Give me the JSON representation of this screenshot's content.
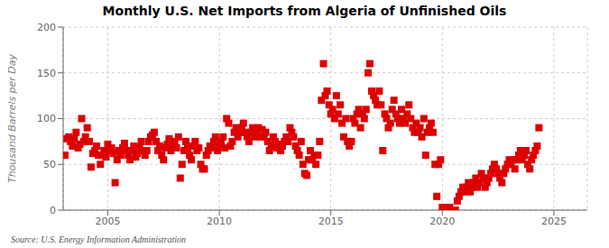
{
  "chart_data": {
    "type": "scatter",
    "title": "Monthly U.S. Net Imports from Algeria of Unfinished Oils",
    "ylabel": "Thousand Barrels per Day",
    "source": "Source: U.S. Energy Information Administration",
    "color": "#dd0000",
    "marker": "square",
    "grid": true,
    "xlim": [
      2003.0,
      2026.5
    ],
    "xticks": [
      2005,
      2010,
      2015,
      2020,
      2025
    ],
    "ylim": [
      0,
      200
    ],
    "yticks": [
      0,
      50,
      100,
      150,
      200
    ],
    "x": [
      2003.08,
      2003.17,
      2003.25,
      2003.33,
      2003.42,
      2003.5,
      2003.58,
      2003.67,
      2003.75,
      2003.83,
      2003.92,
      2004.0,
      2004.08,
      2004.17,
      2004.25,
      2004.33,
      2004.42,
      2004.5,
      2004.58,
      2004.67,
      2004.75,
      2004.83,
      2004.92,
      2005.0,
      2005.08,
      2005.17,
      2005.25,
      2005.33,
      2005.42,
      2005.5,
      2005.58,
      2005.67,
      2005.75,
      2005.83,
      2005.92,
      2006.0,
      2006.08,
      2006.17,
      2006.25,
      2006.33,
      2006.42,
      2006.5,
      2006.58,
      2006.67,
      2006.75,
      2006.83,
      2006.92,
      2007.0,
      2007.08,
      2007.17,
      2007.25,
      2007.33,
      2007.42,
      2007.5,
      2007.58,
      2007.67,
      2007.75,
      2007.83,
      2007.92,
      2008.0,
      2008.08,
      2008.17,
      2008.25,
      2008.33,
      2008.42,
      2008.5,
      2008.58,
      2008.67,
      2008.75,
      2008.83,
      2008.92,
      2009.0,
      2009.08,
      2009.17,
      2009.25,
      2009.33,
      2009.42,
      2009.5,
      2009.58,
      2009.67,
      2009.75,
      2009.83,
      2009.92,
      2010.0,
      2010.08,
      2010.17,
      2010.25,
      2010.33,
      2010.42,
      2010.5,
      2010.58,
      2010.67,
      2010.75,
      2010.83,
      2010.92,
      2011.0,
      2011.08,
      2011.17,
      2011.25,
      2011.33,
      2011.42,
      2011.5,
      2011.58,
      2011.67,
      2011.75,
      2011.83,
      2011.92,
      2012.0,
      2012.08,
      2012.17,
      2012.25,
      2012.33,
      2012.42,
      2012.5,
      2012.58,
      2012.67,
      2012.75,
      2012.83,
      2012.92,
      2013.0,
      2013.08,
      2013.17,
      2013.25,
      2013.33,
      2013.42,
      2013.5,
      2013.58,
      2013.67,
      2013.75,
      2013.83,
      2013.92,
      2014.0,
      2014.08,
      2014.17,
      2014.25,
      2014.33,
      2014.42,
      2014.5,
      2014.58,
      2014.67,
      2014.75,
      2014.83,
      2014.92,
      2015.0,
      2015.08,
      2015.17,
      2015.25,
      2015.33,
      2015.42,
      2015.5,
      2015.58,
      2015.67,
      2015.75,
      2015.83,
      2015.92,
      2016.0,
      2016.08,
      2016.17,
      2016.25,
      2016.33,
      2016.42,
      2016.5,
      2016.58,
      2016.67,
      2016.75,
      2016.83,
      2016.92,
      2017.0,
      2017.08,
      2017.17,
      2017.25,
      2017.33,
      2017.42,
      2017.5,
      2017.58,
      2017.67,
      2017.75,
      2017.83,
      2017.92,
      2018.0,
      2018.08,
      2018.17,
      2018.25,
      2018.33,
      2018.42,
      2018.5,
      2018.58,
      2018.67,
      2018.75,
      2018.83,
      2018.92,
      2019.0,
      2019.08,
      2019.17,
      2019.25,
      2019.33,
      2019.42,
      2019.5,
      2019.58,
      2019.67,
      2019.75,
      2019.83,
      2019.92,
      2020.0,
      2020.08,
      2020.17,
      2020.25,
      2020.33,
      2020.42,
      2020.5,
      2020.58,
      2020.67,
      2020.75,
      2020.83,
      2020.92,
      2021.0,
      2021.08,
      2021.17,
      2021.25,
      2021.33,
      2021.42,
      2021.5,
      2021.58,
      2021.67,
      2021.75,
      2021.83,
      2021.92,
      2022.0,
      2022.08,
      2022.17,
      2022.25,
      2022.33,
      2022.42,
      2022.5,
      2022.58,
      2022.67,
      2022.75,
      2022.83,
      2022.92,
      2023.0,
      2023.08,
      2023.17,
      2023.25,
      2023.33,
      2023.42,
      2023.5,
      2023.58,
      2023.67,
      2023.75,
      2023.83,
      2023.92,
      2024.0,
      2024.08,
      2024.17,
      2024.25,
      2024.33
    ],
    "values": [
      60,
      78,
      80,
      75,
      70,
      78,
      85,
      68,
      72,
      100,
      75,
      80,
      90,
      75,
      47,
      62,
      65,
      70,
      60,
      50,
      60,
      65,
      58,
      72,
      65,
      68,
      62,
      30,
      55,
      65,
      60,
      68,
      73,
      65,
      60,
      55,
      65,
      70,
      58,
      62,
      68,
      75,
      65,
      60,
      65,
      75,
      80,
      82,
      85,
      75,
      65,
      70,
      60,
      55,
      68,
      72,
      78,
      65,
      70,
      75,
      68,
      80,
      35,
      50,
      65,
      75,
      68,
      60,
      55,
      70,
      75,
      65,
      68,
      50,
      45,
      45,
      60,
      65,
      70,
      68,
      75,
      80,
      65,
      70,
      75,
      80,
      68,
      100,
      95,
      70,
      75,
      85,
      90,
      80,
      85,
      90,
      95,
      85,
      80,
      75,
      85,
      90,
      80,
      85,
      90,
      80,
      88,
      80,
      85,
      75,
      65,
      70,
      80,
      75,
      68,
      72,
      65,
      70,
      75,
      80,
      75,
      90,
      85,
      80,
      70,
      65,
      60,
      75,
      50,
      40,
      38,
      55,
      65,
      55,
      60,
      50,
      60,
      75,
      120,
      160,
      125,
      130,
      115,
      105,
      110,
      100,
      125,
      105,
      115,
      95,
      80,
      100,
      75,
      70,
      75,
      100,
      95,
      105,
      110,
      90,
      105,
      100,
      110,
      150,
      160,
      130,
      125,
      120,
      115,
      130,
      115,
      65,
      105,
      100,
      90,
      95,
      110,
      120,
      105,
      100,
      95,
      110,
      100,
      95,
      105,
      115,
      100,
      90,
      85,
      95,
      85,
      90,
      80,
      100,
      60,
      85,
      90,
      95,
      85,
      50,
      15,
      50,
      55,
      3,
      2,
      3,
      2,
      3,
      0,
      0,
      0,
      10,
      15,
      20,
      25,
      20,
      25,
      30,
      20,
      25,
      30,
      35,
      25,
      30,
      40,
      35,
      25,
      30,
      35,
      40,
      45,
      50,
      45,
      40,
      35,
      30,
      40,
      45,
      50,
      55,
      50,
      55,
      45,
      55,
      60,
      65,
      55,
      60,
      65,
      50,
      45,
      55,
      60,
      65,
      70,
      90
    ]
  }
}
